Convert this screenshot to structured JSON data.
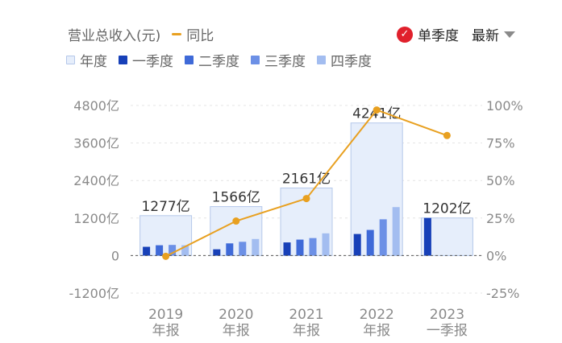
{
  "header": {
    "revenue_label": "营业总收入(元)",
    "yoy_label": "同比",
    "single_quarter_label": "单季度",
    "check_mark": "✓",
    "latest_label": "最新"
  },
  "legend": [
    {
      "label": "年度",
      "color": "#e6eefb"
    },
    {
      "label": "一季度",
      "color": "#1740b8"
    },
    {
      "label": "二季度",
      "color": "#3f6ad8"
    },
    {
      "label": "三季度",
      "color": "#6c90e6"
    },
    {
      "label": "四季度",
      "color": "#a3bdf0"
    }
  ],
  "chart_data": {
    "type": "bar",
    "categories": [
      [
        "2019",
        "年报"
      ],
      [
        "2020",
        "年报"
      ],
      [
        "2021",
        "年报"
      ],
      [
        "2022",
        "年报"
      ],
      [
        "2023",
        "一季报"
      ]
    ],
    "annual": {
      "values": [
        1277,
        1566,
        2161,
        4241,
        1202
      ],
      "labels": [
        "1277亿",
        "1566亿",
        "2161亿",
        "4241亿",
        "1202亿"
      ]
    },
    "quarters": [
      [
        280,
        330,
        340,
        330
      ],
      [
        200,
        390,
        440,
        530
      ],
      [
        420,
        510,
        560,
        710
      ],
      [
        690,
        820,
        1160,
        1550
      ],
      [
        1202,
        null,
        null,
        null
      ]
    ],
    "quarter_colors": [
      "#1740b8",
      "#3f6ad8",
      "#6c90e6",
      "#a3bdf0"
    ],
    "yoy": {
      "values": [
        -0.5,
        23,
        38,
        97,
        80
      ],
      "color": "#e8a020"
    },
    "y_left": {
      "ticks": [
        4800,
        3600,
        2400,
        1200,
        0,
        -1200
      ],
      "tick_labels": [
        "4800亿",
        "3600亿",
        "2400亿",
        "1200亿",
        "0",
        "-1200亿"
      ],
      "range": [
        -1200,
        4800
      ]
    },
    "y_right": {
      "ticks": [
        100,
        75,
        50,
        25,
        0,
        -25
      ],
      "tick_labels": [
        "100%",
        "75%",
        "50%",
        "25%",
        "0%",
        "-25%"
      ],
      "range": [
        -25,
        100
      ]
    },
    "grid": true,
    "annual_fill": "#e6eefb",
    "annual_stroke": "#b5c8ea"
  }
}
